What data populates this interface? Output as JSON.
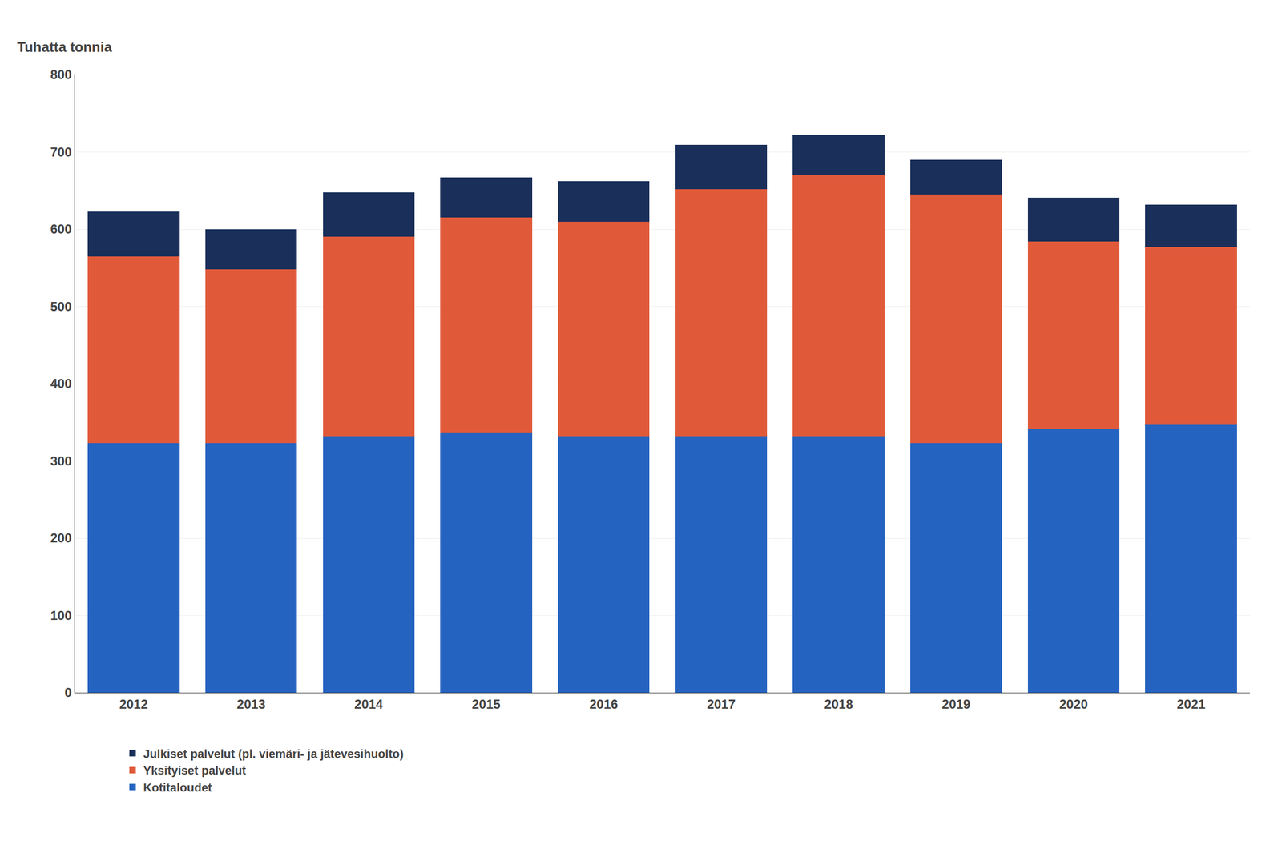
{
  "chart_data": {
    "type": "bar",
    "stacked": true,
    "ylabel": "Tuhatta tonnia",
    "categories": [
      "2012",
      "2013",
      "2014",
      "2015",
      "2016",
      "2017",
      "2018",
      "2019",
      "2020",
      "2021"
    ],
    "series": [
      {
        "name": "Kotitaloudet",
        "color": "#2563c0",
        "values": [
          323,
          323,
          332,
          337,
          332,
          332,
          332,
          323,
          342,
          347
        ]
      },
      {
        "name": "Yksityiset palvelut",
        "color": "#e05a3a",
        "values": [
          242,
          225,
          258,
          278,
          278,
          320,
          338,
          322,
          242,
          230
        ]
      },
      {
        "name": "Julkiset palvelut (pl. viemäri- ja jätevesihuolto)",
        "color": "#1a2f5a",
        "values": [
          58,
          52,
          58,
          52,
          52,
          57,
          52,
          45,
          57,
          55
        ]
      }
    ],
    "ylim": [
      0,
      800
    ],
    "yticks": [
      0,
      100,
      200,
      300,
      400,
      500,
      600,
      700,
      800
    ],
    "grid": true,
    "legend": "below"
  }
}
